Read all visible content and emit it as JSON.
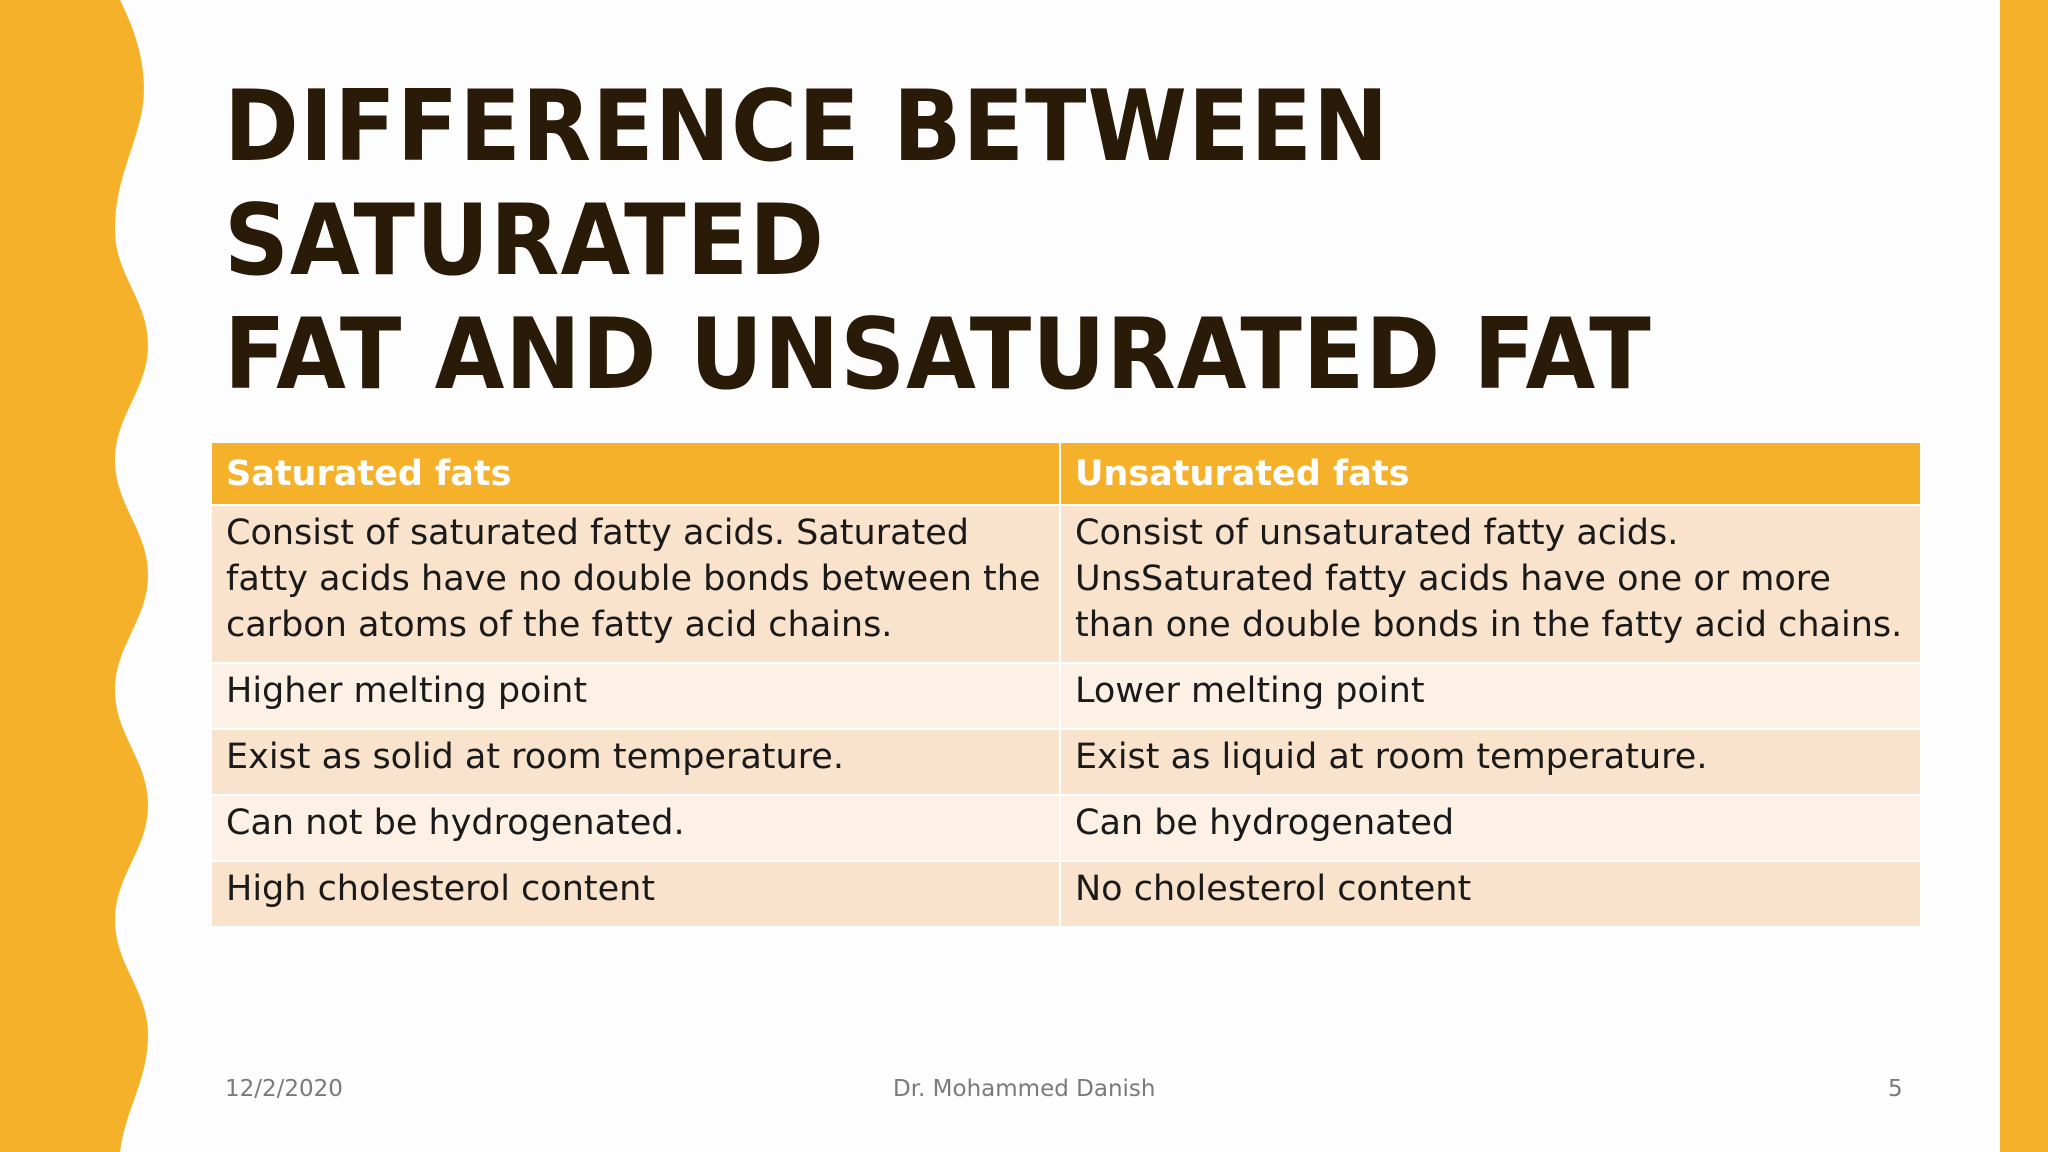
{
  "slide": {
    "title_line1": "Difference between saturated",
    "title_line2": "fat and unsaturated fat",
    "accent_color": "#F6B12A",
    "title_color": "#2a1a08"
  },
  "table": {
    "headers": [
      "Saturated fats",
      "Unsaturated fats"
    ],
    "rows": [
      [
        "Consist of saturated fatty acids. Saturated fatty acids have no double bonds between the carbon atoms of the fatty acid chains.",
        "Consist of unsaturated fatty acids. UnsSaturated fatty acids have one or more than one double bonds in the fatty acid chains."
      ],
      [
        "Higher melting point",
        "Lower melting point"
      ],
      [
        "Exist as solid at room temperature.",
        "Exist as liquid at room temperature."
      ],
      [
        "Can not be hydrogenated.",
        "Can be hydrogenated"
      ],
      [
        "High cholesterol content",
        "No cholesterol content"
      ]
    ]
  },
  "footer": {
    "date": "12/2/2020",
    "author": "Dr. Mohammed Danish",
    "page_number": "5"
  }
}
